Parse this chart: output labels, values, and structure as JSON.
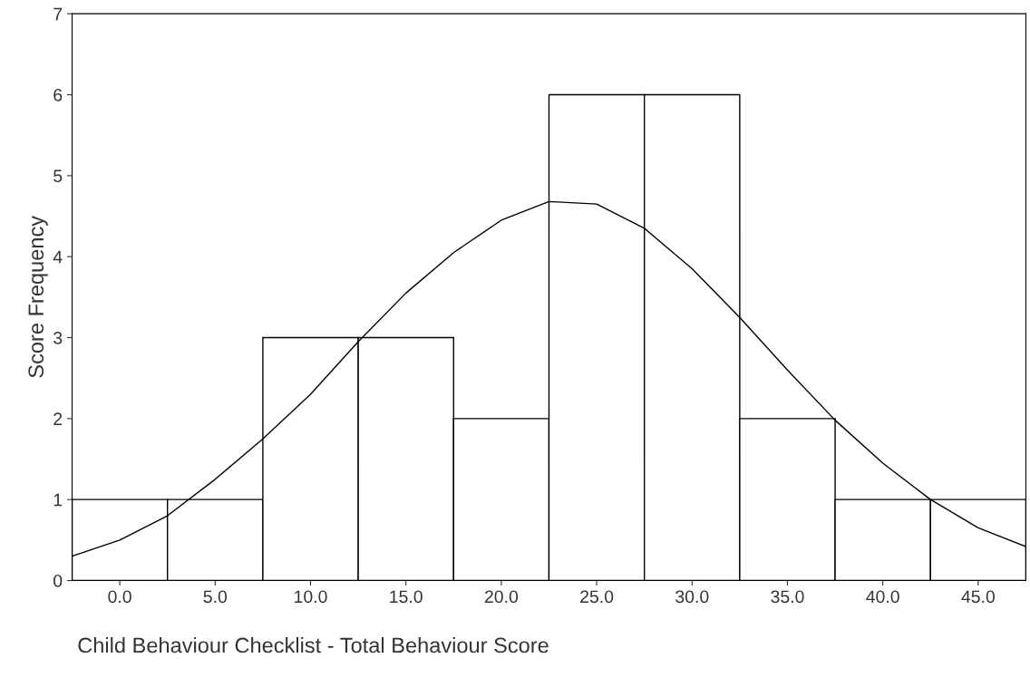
{
  "chart_data": {
    "type": "histogram",
    "xlabel": "Child Behaviour Checklist - Total Behaviour Score",
    "ylabel": "Score Frequency",
    "series": [
      {
        "type": "histogram",
        "bins": [
          -2.5,
          2.5,
          7.5,
          12.5,
          17.5,
          22.5,
          27.5,
          32.5,
          37.5,
          42.5,
          47.5
        ],
        "values": [
          1,
          1,
          3,
          3,
          2,
          6,
          6,
          2,
          1,
          1
        ],
        "color": "#ffffff"
      },
      {
        "type": "line",
        "x": [
          -2.5,
          0,
          2.5,
          5,
          7.5,
          10,
          12.5,
          15,
          17.5,
          20,
          22.5,
          25,
          27.5,
          30,
          32.5,
          35,
          37.5,
          40,
          42.5,
          45,
          47.5
        ],
        "values": [
          0.3,
          0.5,
          0.8,
          1.25,
          1.75,
          2.3,
          2.95,
          3.55,
          4.05,
          4.45,
          4.68,
          4.65,
          4.35,
          3.85,
          3.25,
          2.6,
          1.98,
          1.45,
          1.0,
          0.65,
          0.42
        ],
        "color": "#000000"
      }
    ],
    "xlim": [
      -2.5,
      47.5
    ],
    "ylim": [
      0,
      7
    ],
    "xticks": [
      {
        "value": 0,
        "label": "0.0"
      },
      {
        "value": 5,
        "label": "5.0"
      },
      {
        "value": 10,
        "label": "10.0"
      },
      {
        "value": 15,
        "label": "15.0"
      },
      {
        "value": 20,
        "label": "20.0"
      },
      {
        "value": 25,
        "label": "25.0"
      },
      {
        "value": 30,
        "label": "30.0"
      },
      {
        "value": 35,
        "label": "35.0"
      },
      {
        "value": 40,
        "label": "40.0"
      },
      {
        "value": 45,
        "label": "45.0"
      }
    ],
    "yticks": [
      0,
      1,
      2,
      3,
      4,
      5,
      6,
      7
    ],
    "grid": false,
    "legend": false,
    "marker": "none",
    "line_style": "solid"
  }
}
